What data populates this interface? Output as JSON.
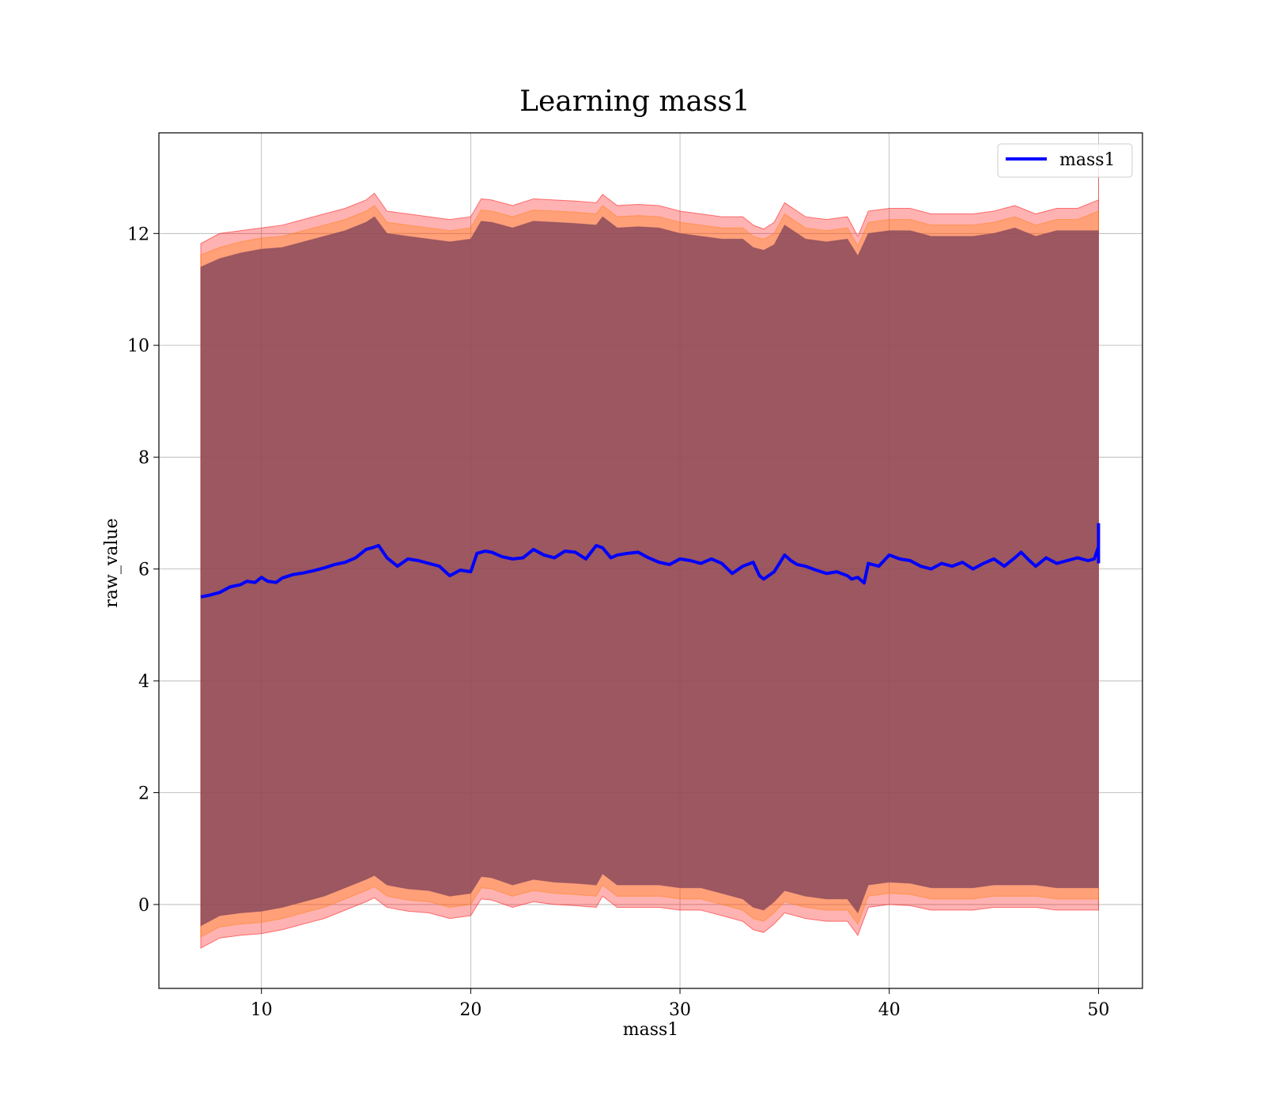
{
  "chart_data": {
    "type": "area",
    "title": "Learning mass1",
    "xlabel": "mass1",
    "ylabel": "raw_value",
    "xlim": [
      5.1,
      52.1
    ],
    "ylim": [
      -1.5,
      13.8
    ],
    "xticks": [
      10,
      20,
      30,
      40,
      50
    ],
    "yticks": [
      0,
      2,
      4,
      6,
      8,
      10,
      12
    ],
    "grid": true,
    "legend": {
      "position": "top-right"
    },
    "series": [
      {
        "name": "mass1",
        "role": "line",
        "color": "#0000ff",
        "x": [
          7.1,
          7.5,
          8.0,
          8.5,
          9.0,
          9.3,
          9.7,
          10.0,
          10.3,
          10.7,
          11.0,
          11.5,
          12.0,
          12.5,
          13.0,
          13.5,
          14.0,
          14.5,
          15.0,
          15.3,
          15.6,
          16.0,
          16.5,
          17.0,
          17.5,
          18.0,
          18.5,
          19.0,
          19.5,
          20.0,
          20.3,
          20.7,
          21.0,
          21.5,
          22.0,
          22.5,
          23.0,
          23.5,
          24.0,
          24.5,
          25.0,
          25.5,
          26.0,
          26.3,
          26.7,
          27.0,
          27.5,
          28.0,
          28.5,
          29.0,
          29.5,
          30.0,
          30.5,
          31.0,
          31.5,
          32.0,
          32.5,
          33.0,
          33.5,
          33.8,
          34.0,
          34.5,
          35.0,
          35.3,
          35.6,
          36.0,
          36.5,
          37.0,
          37.5,
          38.0,
          38.2,
          38.5,
          38.8,
          39.0,
          39.5,
          40.0,
          40.5,
          41.0,
          41.5,
          42.0,
          42.5,
          43.0,
          43.5,
          44.0,
          44.5,
          45.0,
          45.5,
          46.0,
          46.3,
          46.7,
          47.0,
          47.5,
          48.0,
          48.5,
          49.0,
          49.5,
          49.8,
          50.0
        ],
        "y": [
          5.5,
          5.53,
          5.58,
          5.68,
          5.72,
          5.78,
          5.76,
          5.85,
          5.78,
          5.76,
          5.84,
          5.9,
          5.93,
          5.97,
          6.02,
          6.08,
          6.12,
          6.2,
          6.35,
          6.38,
          6.42,
          6.2,
          6.05,
          6.18,
          6.15,
          6.1,
          6.05,
          5.88,
          5.98,
          5.95,
          6.28,
          6.32,
          6.3,
          6.22,
          6.18,
          6.2,
          6.35,
          6.25,
          6.2,
          6.32,
          6.3,
          6.18,
          6.42,
          6.38,
          6.2,
          6.25,
          6.28,
          6.3,
          6.2,
          6.12,
          6.08,
          6.18,
          6.15,
          6.1,
          6.18,
          6.1,
          5.92,
          6.05,
          6.12,
          5.88,
          5.82,
          5.95,
          6.25,
          6.15,
          6.08,
          6.05,
          5.98,
          5.92,
          5.95,
          5.88,
          5.82,
          5.85,
          5.75,
          6.1,
          6.05,
          6.25,
          6.18,
          6.15,
          6.05,
          6.0,
          6.1,
          6.05,
          6.12,
          6.0,
          6.1,
          6.18,
          6.05,
          6.2,
          6.3,
          6.15,
          6.05,
          6.2,
          6.1,
          6.15,
          6.2,
          6.15,
          6.18,
          6.4
        ],
        "spike": {
          "x": 50.0,
          "y_min": 6.1,
          "y_max": 6.82
        }
      },
      {
        "role": "band",
        "color": "#ff0000",
        "opacity": 0.3,
        "x": [
          7.1,
          8.0,
          9.0,
          10.0,
          11.0,
          12.0,
          13.0,
          14.0,
          15.0,
          15.4,
          16.0,
          17.0,
          18.0,
          19.0,
          20.0,
          20.5,
          21.0,
          22.0,
          23.0,
          24.0,
          25.0,
          26.0,
          26.3,
          27.0,
          28.0,
          29.0,
          30.0,
          31.0,
          32.0,
          33.0,
          33.5,
          34.0,
          34.5,
          35.0,
          36.0,
          37.0,
          38.0,
          38.5,
          39.0,
          40.0,
          41.0,
          42.0,
          43.0,
          44.0,
          45.0,
          46.0,
          47.0,
          48.0,
          49.0,
          50.0
        ],
        "upper": [
          11.82,
          12.0,
          12.05,
          12.1,
          12.15,
          12.25,
          12.35,
          12.45,
          12.6,
          12.72,
          12.4,
          12.35,
          12.3,
          12.25,
          12.3,
          12.62,
          12.6,
          12.5,
          12.62,
          12.6,
          12.58,
          12.55,
          12.7,
          12.5,
          12.52,
          12.5,
          12.4,
          12.35,
          12.3,
          12.3,
          12.15,
          12.08,
          12.2,
          12.55,
          12.3,
          12.25,
          12.3,
          11.95,
          12.4,
          12.45,
          12.45,
          12.35,
          12.35,
          12.35,
          12.4,
          12.5,
          12.35,
          12.45,
          12.45,
          12.6
        ],
        "lower": [
          -0.78,
          -0.6,
          -0.55,
          -0.52,
          -0.45,
          -0.35,
          -0.25,
          -0.1,
          0.05,
          0.12,
          -0.05,
          -0.12,
          -0.15,
          -0.25,
          -0.2,
          0.1,
          0.08,
          -0.05,
          0.05,
          0.0,
          -0.02,
          -0.05,
          0.15,
          -0.05,
          -0.05,
          -0.05,
          -0.1,
          -0.1,
          -0.2,
          -0.3,
          -0.45,
          -0.5,
          -0.35,
          -0.15,
          -0.25,
          -0.3,
          -0.3,
          -0.55,
          -0.05,
          0.0,
          -0.02,
          -0.1,
          -0.1,
          -0.1,
          -0.05,
          -0.05,
          -0.05,
          -0.1,
          -0.1,
          -0.1
        ],
        "end_spike": {
          "x": 50.0,
          "upper": 13.2,
          "lower": 0.5
        }
      },
      {
        "role": "band",
        "color": "#ff7f0e",
        "opacity": 0.35,
        "x": [
          7.1,
          8.0,
          9.0,
          10.0,
          11.0,
          12.0,
          13.0,
          14.0,
          15.0,
          15.4,
          16.0,
          17.0,
          18.0,
          19.0,
          20.0,
          20.5,
          21.0,
          22.0,
          23.0,
          24.0,
          25.0,
          26.0,
          26.3,
          27.0,
          28.0,
          29.0,
          30.0,
          31.0,
          32.0,
          33.0,
          33.5,
          34.0,
          34.5,
          35.0,
          36.0,
          37.0,
          38.0,
          38.5,
          39.0,
          40.0,
          41.0,
          42.0,
          43.0,
          44.0,
          45.0,
          46.0,
          47.0,
          48.0,
          49.0,
          50.0
        ],
        "upper": [
          11.62,
          11.75,
          11.85,
          11.92,
          11.95,
          12.05,
          12.15,
          12.25,
          12.4,
          12.5,
          12.2,
          12.15,
          12.1,
          12.05,
          12.1,
          12.42,
          12.4,
          12.3,
          12.42,
          12.4,
          12.38,
          12.35,
          12.5,
          12.3,
          12.32,
          12.3,
          12.2,
          12.15,
          12.1,
          12.1,
          11.95,
          11.9,
          12.0,
          12.35,
          12.1,
          12.05,
          12.1,
          11.78,
          12.2,
          12.25,
          12.25,
          12.15,
          12.15,
          12.15,
          12.2,
          12.3,
          12.15,
          12.25,
          12.25,
          12.4
        ],
        "lower": [
          -0.58,
          -0.4,
          -0.35,
          -0.32,
          -0.25,
          -0.15,
          -0.05,
          0.1,
          0.25,
          0.32,
          0.15,
          0.08,
          0.05,
          -0.05,
          0.0,
          0.3,
          0.28,
          0.15,
          0.25,
          0.2,
          0.18,
          0.15,
          0.35,
          0.15,
          0.15,
          0.15,
          0.1,
          0.1,
          0.0,
          -0.1,
          -0.25,
          -0.3,
          -0.15,
          0.05,
          -0.05,
          -0.1,
          -0.1,
          -0.35,
          0.15,
          0.2,
          0.18,
          0.1,
          0.1,
          0.1,
          0.15,
          0.15,
          0.15,
          0.1,
          0.1,
          0.1
        ]
      },
      {
        "role": "band",
        "color": "#8b4a5c",
        "opacity": 0.85,
        "x": [
          7.1,
          8.0,
          9.0,
          10.0,
          11.0,
          12.0,
          13.0,
          14.0,
          15.0,
          15.4,
          16.0,
          17.0,
          18.0,
          19.0,
          20.0,
          20.5,
          21.0,
          22.0,
          23.0,
          24.0,
          25.0,
          26.0,
          26.3,
          27.0,
          28.0,
          29.0,
          30.0,
          31.0,
          32.0,
          33.0,
          33.5,
          34.0,
          34.5,
          35.0,
          36.0,
          37.0,
          38.0,
          38.5,
          39.0,
          40.0,
          41.0,
          42.0,
          43.0,
          44.0,
          45.0,
          46.0,
          47.0,
          48.0,
          49.0,
          50.0
        ],
        "upper": [
          11.4,
          11.55,
          11.65,
          11.72,
          11.75,
          11.85,
          11.95,
          12.05,
          12.2,
          12.3,
          12.0,
          11.95,
          11.9,
          11.85,
          11.9,
          12.22,
          12.2,
          12.1,
          12.22,
          12.2,
          12.18,
          12.15,
          12.3,
          12.1,
          12.12,
          12.1,
          12.0,
          11.95,
          11.9,
          11.9,
          11.75,
          11.7,
          11.8,
          12.15,
          11.9,
          11.85,
          11.9,
          11.6,
          12.0,
          12.05,
          12.05,
          11.95,
          11.95,
          11.95,
          12.0,
          12.1,
          11.95,
          12.05,
          12.05,
          12.05
        ],
        "lower": [
          -0.38,
          -0.2,
          -0.15,
          -0.12,
          -0.05,
          0.05,
          0.15,
          0.3,
          0.45,
          0.52,
          0.35,
          0.28,
          0.25,
          0.15,
          0.2,
          0.5,
          0.48,
          0.35,
          0.45,
          0.4,
          0.38,
          0.35,
          0.55,
          0.35,
          0.35,
          0.35,
          0.3,
          0.3,
          0.2,
          0.1,
          -0.05,
          -0.1,
          0.05,
          0.25,
          0.15,
          0.1,
          0.1,
          -0.15,
          0.35,
          0.4,
          0.38,
          0.3,
          0.3,
          0.3,
          0.35,
          0.35,
          0.35,
          0.3,
          0.3,
          0.3
        ]
      }
    ]
  }
}
